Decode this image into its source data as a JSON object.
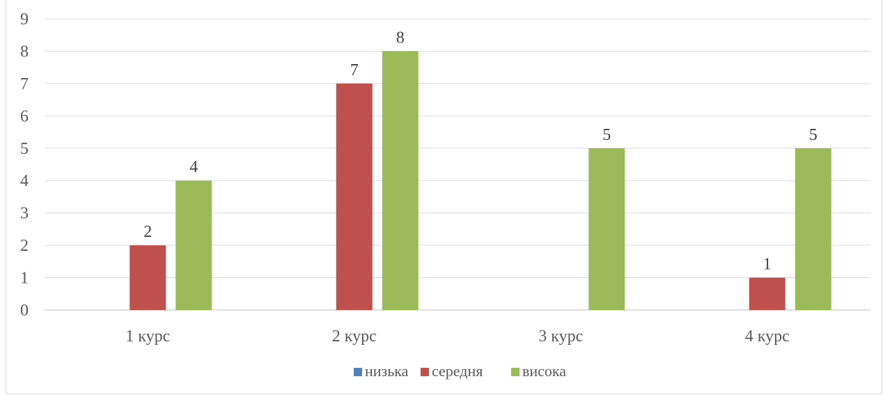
{
  "chart_data": {
    "type": "bar",
    "categories": [
      "1 курс",
      "2 курс",
      "3 курс",
      "4 курс"
    ],
    "series": [
      {
        "name": "низька",
        "color": "#4f81bd",
        "values": [
          0,
          0,
          0,
          0
        ]
      },
      {
        "name": "середня",
        "color": "#c0504d",
        "values": [
          2,
          7,
          0,
          1
        ]
      },
      {
        "name": "висока",
        "color": "#9bbb59",
        "values": [
          4,
          8,
          5,
          5
        ]
      }
    ],
    "y_ticks": [
      "0",
      "1",
      "2",
      "3",
      "4",
      "5",
      "6",
      "7",
      "8",
      "9"
    ],
    "ylim": [
      0,
      9
    ],
    "data_labels_shown": {
      "низька": false,
      "середня": true,
      "висока": true
    },
    "data_labels_hidden_on_zero": true,
    "grid": true,
    "legend_position": "bottom"
  }
}
